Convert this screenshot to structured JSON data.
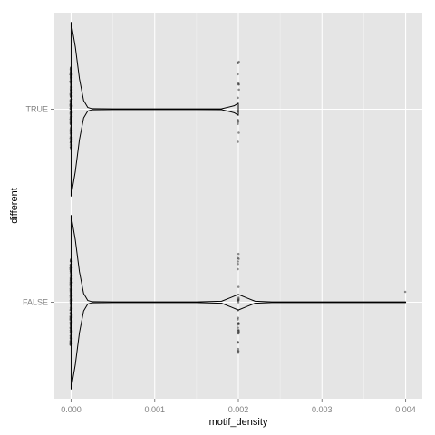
{
  "chart_data": {
    "type": "violin",
    "orientation": "horizontal",
    "xlabel": "motif_density",
    "ylabel": "different",
    "xlim": [
      -0.0002,
      0.0042
    ],
    "x_ticks": [
      "0.000",
      "0.001",
      "0.002",
      "0.003",
      "0.004"
    ],
    "x_tick_values": [
      0,
      0.001,
      0.002,
      0.003,
      0.004
    ],
    "categories": [
      "FALSE",
      "TRUE"
    ],
    "grid": true,
    "legend": "none",
    "colors": {
      "panel": "#e5e5e5",
      "grid_major": "#ffffff",
      "grid_minor": "#f2f2f2",
      "outline": "#000000",
      "points": "#333333",
      "tick_text": "#7f7f7f"
    },
    "series": [
      {
        "category": "TRUE",
        "range": [
          0,
          0.002
        ],
        "density": [
          [
            0,
            1.0
          ],
          [
            5e-05,
            0.72
          ],
          [
            0.0001,
            0.35
          ],
          [
            0.00015,
            0.1
          ],
          [
            0.0002,
            0.02
          ],
          [
            0.00025,
            0.006
          ],
          [
            0.0005,
            0.004
          ],
          [
            0.001,
            0.004
          ],
          [
            0.0015,
            0.004
          ],
          [
            0.0018,
            0.005
          ],
          [
            0.00195,
            0.04
          ],
          [
            0.002,
            0.07
          ]
        ],
        "point_clusters": [
          {
            "x": 0,
            "count": 220,
            "spread": 0.48
          },
          {
            "x": 0.002,
            "count": 16,
            "spread": 0.55
          }
        ]
      },
      {
        "category": "FALSE",
        "range": [
          0,
          0.004
        ],
        "density": [
          [
            0,
            1.0
          ],
          [
            5e-05,
            0.72
          ],
          [
            0.0001,
            0.35
          ],
          [
            0.00015,
            0.1
          ],
          [
            0.0002,
            0.02
          ],
          [
            0.00025,
            0.006
          ],
          [
            0.0005,
            0.004
          ],
          [
            0.001,
            0.004
          ],
          [
            0.0015,
            0.004
          ],
          [
            0.0018,
            0.012
          ],
          [
            0.0019,
            0.05
          ],
          [
            0.002,
            0.09
          ],
          [
            0.0021,
            0.05
          ],
          [
            0.0022,
            0.012
          ],
          [
            0.0024,
            0.004
          ],
          [
            0.003,
            0.004
          ],
          [
            0.0035,
            0.004
          ],
          [
            0.004,
            0.004
          ]
        ],
        "point_clusters": [
          {
            "x": 0,
            "count": 260,
            "spread": 0.5
          },
          {
            "x": 0.002,
            "count": 36,
            "spread": 0.6
          },
          {
            "x": 0.004,
            "count": 1,
            "spread": 0.12
          }
        ]
      }
    ]
  }
}
